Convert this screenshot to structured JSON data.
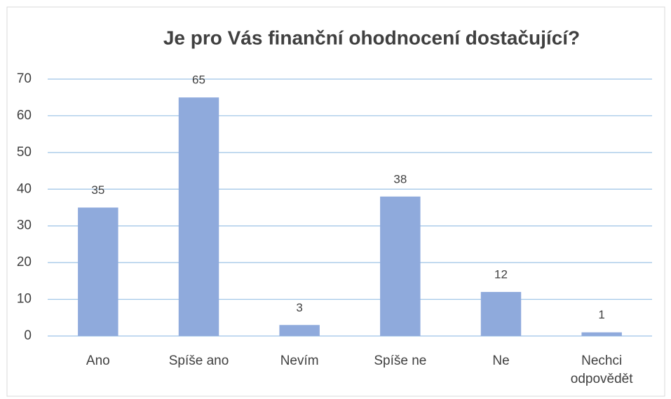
{
  "chart_data": {
    "type": "bar",
    "title": "Je pro Vás finanční ohodnocení dostačující?",
    "categories": [
      "Ano",
      "Spíše ano",
      "Nevím",
      "Spíše ne",
      "Ne",
      "Nechci odpovědět"
    ],
    "values": [
      35,
      65,
      3,
      38,
      12,
      1
    ],
    "color": "#8faadc",
    "ylim": [
      0,
      70
    ],
    "yticks": [
      0,
      10,
      20,
      30,
      40,
      50,
      60,
      70
    ],
    "grid": true
  }
}
